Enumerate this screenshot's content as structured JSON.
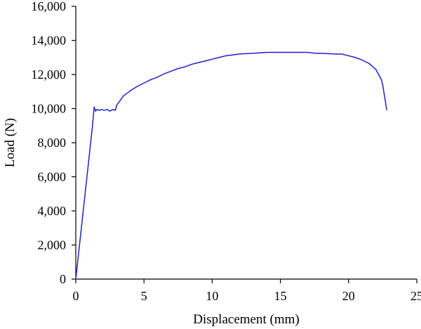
{
  "chart_data": {
    "type": "line",
    "title": "",
    "xlabel": "Displacement (mm)",
    "ylabel": "Load (N)",
    "xlim": [
      0,
      25
    ],
    "ylim": [
      0,
      16000
    ],
    "x_ticks": [
      0,
      5,
      10,
      15,
      20,
      25
    ],
    "x_tick_labels": [
      "0",
      "5",
      "10",
      "15",
      "20",
      "25"
    ],
    "y_ticks": [
      0,
      2000,
      4000,
      6000,
      8000,
      10000,
      12000,
      14000,
      16000
    ],
    "y_tick_labels": [
      "0",
      "2,000",
      "4,000",
      "6,000",
      "8,000",
      "10,000",
      "12,000",
      "14,000",
      "16,000"
    ],
    "grid": false,
    "legend": "none",
    "series": [
      {
        "color": "#1f1fd0",
        "x": [
          0,
          0.3,
          0.6,
          0.9,
          1.2,
          1.35,
          1.45,
          1.55,
          1.7,
          1.9,
          2.1,
          2.3,
          2.5,
          2.7,
          2.9,
          3.0,
          3.5,
          4.0,
          4.5,
          5.0,
          5.5,
          6.0,
          6.5,
          7.0,
          7.5,
          8.0,
          8.5,
          9.0,
          9.5,
          10.0,
          10.5,
          11.0,
          12.0,
          13.0,
          14.0,
          15.0,
          16.0,
          17.0,
          17.5,
          18.0,
          19.0,
          19.5,
          20.0,
          20.5,
          21.0,
          21.5,
          22.0,
          22.2,
          22.4,
          22.5,
          22.6,
          22.7,
          22.8
        ],
        "y": [
          0,
          2200,
          4400,
          6600,
          8800,
          10100,
          9850,
          9950,
          9900,
          9950,
          9900,
          9950,
          9850,
          9950,
          9900,
          10200,
          10750,
          11050,
          11300,
          11500,
          11700,
          11850,
          12050,
          12200,
          12350,
          12450,
          12600,
          12700,
          12800,
          12900,
          13000,
          13100,
          13200,
          13250,
          13300,
          13300,
          13300,
          13300,
          13250,
          13250,
          13200,
          13200,
          13100,
          13000,
          12850,
          12650,
          12300,
          12000,
          11700,
          11400,
          10900,
          10400,
          9900
        ]
      }
    ]
  }
}
